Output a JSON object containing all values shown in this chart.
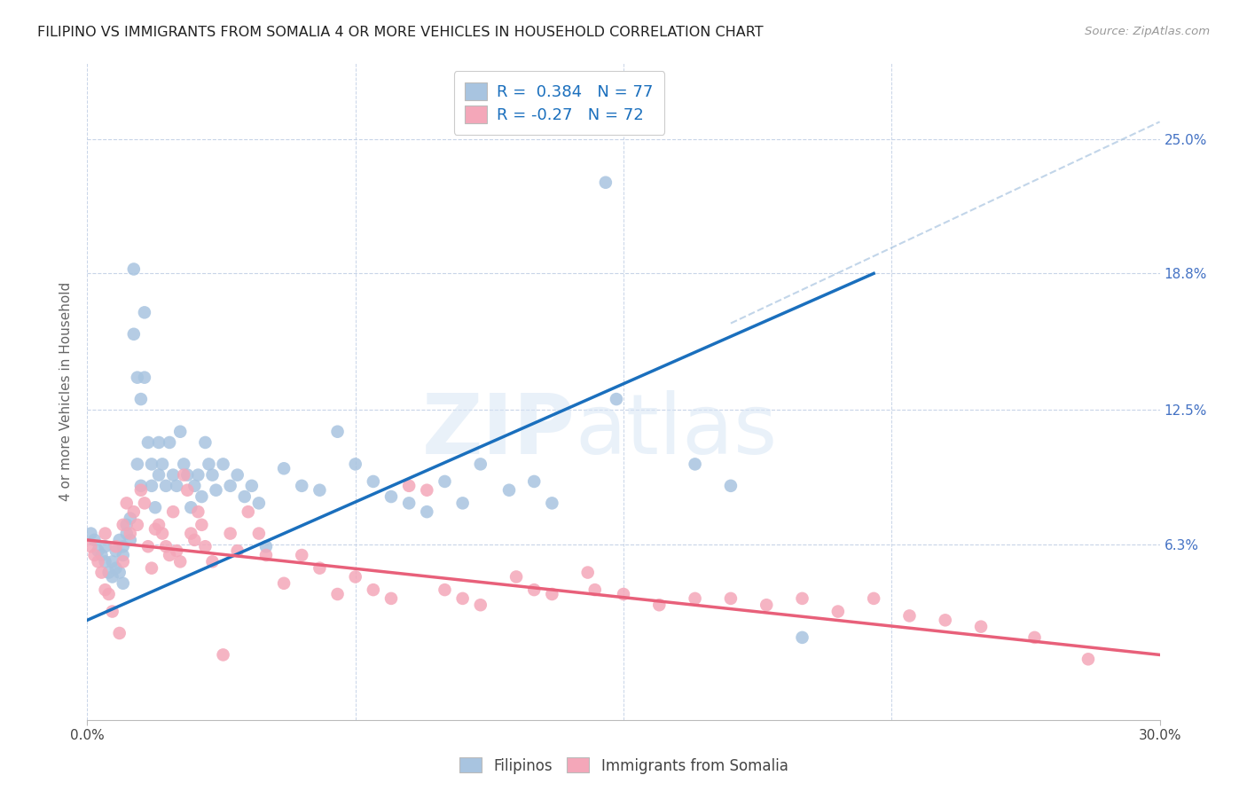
{
  "title": "FILIPINO VS IMMIGRANTS FROM SOMALIA 4 OR MORE VEHICLES IN HOUSEHOLD CORRELATION CHART",
  "source": "Source: ZipAtlas.com",
  "ylabel": "4 or more Vehicles in Household",
  "xlim": [
    0.0,
    0.3
  ],
  "ylim": [
    -0.018,
    0.285
  ],
  "filipino_color": "#a8c4e0",
  "somalia_color": "#f4a7b9",
  "filipino_line_color": "#1a6fbd",
  "somalia_line_color": "#e8607a",
  "dashed_line_color": "#a8c4e0",
  "R_filipino": 0.384,
  "N_filipino": 77,
  "R_somalia": -0.27,
  "N_somalia": 72,
  "grid_color": "#c8d4e8",
  "ytick_positions": [
    0.063,
    0.125,
    0.188,
    0.25
  ],
  "ytick_labels": [
    "6.3%",
    "12.5%",
    "18.8%",
    "25.0%"
  ],
  "fil_line_x0": 0.0,
  "fil_line_y0": 0.028,
  "fil_line_x1": 0.22,
  "fil_line_y1": 0.188,
  "som_line_x0": 0.0,
  "som_line_y0": 0.065,
  "som_line_x1": 0.3,
  "som_line_y1": 0.012,
  "dash_line_x0": 0.18,
  "dash_line_y0": 0.165,
  "dash_line_x1": 0.3,
  "dash_line_y1": 0.258,
  "filipino_scatter_x": [
    0.001,
    0.002,
    0.003,
    0.004,
    0.005,
    0.005,
    0.006,
    0.007,
    0.007,
    0.008,
    0.008,
    0.009,
    0.009,
    0.01,
    0.01,
    0.01,
    0.011,
    0.011,
    0.012,
    0.012,
    0.013,
    0.013,
    0.014,
    0.014,
    0.015,
    0.015,
    0.016,
    0.016,
    0.017,
    0.018,
    0.018,
    0.019,
    0.02,
    0.02,
    0.021,
    0.022,
    0.023,
    0.024,
    0.025,
    0.026,
    0.027,
    0.028,
    0.029,
    0.03,
    0.031,
    0.032,
    0.033,
    0.034,
    0.035,
    0.036,
    0.038,
    0.04,
    0.042,
    0.044,
    0.046,
    0.048,
    0.05,
    0.055,
    0.06,
    0.065,
    0.07,
    0.075,
    0.08,
    0.085,
    0.09,
    0.095,
    0.1,
    0.105,
    0.11,
    0.118,
    0.125,
    0.13,
    0.145,
    0.148,
    0.17,
    0.18,
    0.2
  ],
  "filipino_scatter_y": [
    0.068,
    0.065,
    0.06,
    0.058,
    0.062,
    0.055,
    0.05,
    0.048,
    0.055,
    0.052,
    0.06,
    0.05,
    0.065,
    0.045,
    0.062,
    0.058,
    0.072,
    0.068,
    0.075,
    0.065,
    0.19,
    0.16,
    0.14,
    0.1,
    0.13,
    0.09,
    0.17,
    0.14,
    0.11,
    0.1,
    0.09,
    0.08,
    0.11,
    0.095,
    0.1,
    0.09,
    0.11,
    0.095,
    0.09,
    0.115,
    0.1,
    0.095,
    0.08,
    0.09,
    0.095,
    0.085,
    0.11,
    0.1,
    0.095,
    0.088,
    0.1,
    0.09,
    0.095,
    0.085,
    0.09,
    0.082,
    0.062,
    0.098,
    0.09,
    0.088,
    0.115,
    0.1,
    0.092,
    0.085,
    0.082,
    0.078,
    0.092,
    0.082,
    0.1,
    0.088,
    0.092,
    0.082,
    0.23,
    0.13,
    0.1,
    0.09,
    0.02
  ],
  "somalia_scatter_x": [
    0.001,
    0.002,
    0.003,
    0.004,
    0.005,
    0.005,
    0.006,
    0.007,
    0.008,
    0.009,
    0.01,
    0.01,
    0.011,
    0.012,
    0.013,
    0.014,
    0.015,
    0.016,
    0.017,
    0.018,
    0.019,
    0.02,
    0.021,
    0.022,
    0.023,
    0.024,
    0.025,
    0.026,
    0.027,
    0.028,
    0.029,
    0.03,
    0.031,
    0.032,
    0.033,
    0.035,
    0.038,
    0.04,
    0.042,
    0.045,
    0.048,
    0.05,
    0.055,
    0.06,
    0.065,
    0.07,
    0.075,
    0.08,
    0.085,
    0.09,
    0.095,
    0.1,
    0.105,
    0.11,
    0.12,
    0.125,
    0.13,
    0.14,
    0.142,
    0.15,
    0.16,
    0.17,
    0.18,
    0.19,
    0.2,
    0.21,
    0.22,
    0.23,
    0.24,
    0.25,
    0.265,
    0.28
  ],
  "somalia_scatter_y": [
    0.062,
    0.058,
    0.055,
    0.05,
    0.042,
    0.068,
    0.04,
    0.032,
    0.062,
    0.022,
    0.072,
    0.055,
    0.082,
    0.068,
    0.078,
    0.072,
    0.088,
    0.082,
    0.062,
    0.052,
    0.07,
    0.072,
    0.068,
    0.062,
    0.058,
    0.078,
    0.06,
    0.055,
    0.095,
    0.088,
    0.068,
    0.065,
    0.078,
    0.072,
    0.062,
    0.055,
    0.012,
    0.068,
    0.06,
    0.078,
    0.068,
    0.058,
    0.045,
    0.058,
    0.052,
    0.04,
    0.048,
    0.042,
    0.038,
    0.09,
    0.088,
    0.042,
    0.038,
    0.035,
    0.048,
    0.042,
    0.04,
    0.05,
    0.042,
    0.04,
    0.035,
    0.038,
    0.038,
    0.035,
    0.038,
    0.032,
    0.038,
    0.03,
    0.028,
    0.025,
    0.02,
    0.01
  ]
}
